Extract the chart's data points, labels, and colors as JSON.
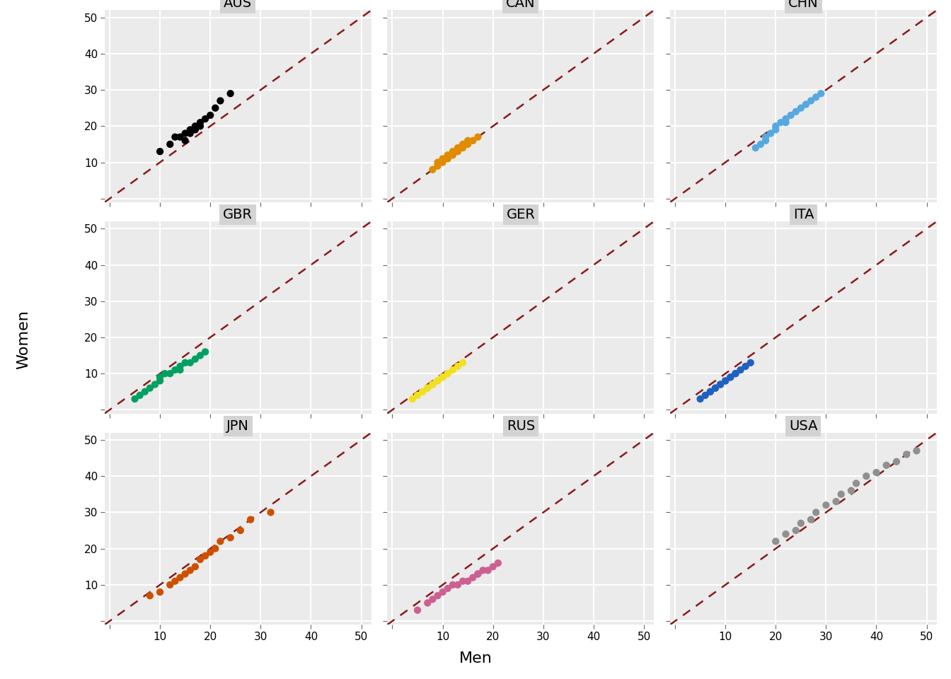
{
  "countries": [
    "AUS",
    "CAN",
    "CHN",
    "GBR",
    "GER",
    "ITA",
    "JPN",
    "RUS",
    "USA"
  ],
  "colors": {
    "AUS": "#000000",
    "CAN": "#E08B00",
    "CHN": "#56A8E0",
    "GBR": "#00A060",
    "GER": "#F0E020",
    "ITA": "#2060C0",
    "JPN": "#CC5000",
    "RUS": "#CC6090",
    "USA": "#909090"
  },
  "data": {
    "AUS": {
      "men": [
        10,
        12,
        13,
        14,
        15,
        15,
        16,
        16,
        17,
        17,
        18,
        18,
        19,
        20,
        21,
        22,
        24
      ],
      "women": [
        13,
        15,
        17,
        17,
        16,
        18,
        18,
        19,
        19,
        20,
        20,
        21,
        22,
        23,
        25,
        27,
        29
      ]
    },
    "CAN": {
      "men": [
        8,
        9,
        9,
        10,
        10,
        11,
        11,
        12,
        12,
        13,
        13,
        14,
        14,
        15,
        15,
        16,
        17
      ],
      "women": [
        8,
        9,
        10,
        10,
        11,
        11,
        12,
        12,
        13,
        13,
        14,
        14,
        15,
        15,
        16,
        16,
        17
      ]
    },
    "CHN": {
      "men": [
        16,
        17,
        18,
        18,
        19,
        20,
        20,
        21,
        22,
        22,
        23,
        24,
        25,
        26,
        27,
        28,
        29
      ],
      "women": [
        14,
        15,
        16,
        17,
        18,
        19,
        20,
        21,
        21,
        22,
        23,
        24,
        25,
        26,
        27,
        28,
        29
      ]
    },
    "GBR": {
      "men": [
        5,
        6,
        7,
        8,
        9,
        10,
        10,
        11,
        12,
        13,
        14,
        14,
        15,
        16,
        17,
        18,
        19
      ],
      "women": [
        3,
        4,
        5,
        6,
        7,
        8,
        9,
        10,
        10,
        11,
        11,
        12,
        13,
        13,
        14,
        15,
        16
      ]
    },
    "GER": {
      "men": [
        4,
        5,
        6,
        6,
        7,
        7,
        8,
        8,
        9,
        9,
        10,
        10,
        11,
        11,
        12,
        13,
        14
      ],
      "women": [
        3,
        4,
        5,
        5,
        6,
        6,
        7,
        7,
        8,
        8,
        9,
        9,
        10,
        10,
        11,
        12,
        13
      ]
    },
    "ITA": {
      "men": [
        5,
        6,
        7,
        7,
        8,
        8,
        9,
        9,
        10,
        10,
        11,
        11,
        12,
        12,
        13,
        14,
        15
      ],
      "women": [
        3,
        4,
        5,
        5,
        6,
        6,
        7,
        7,
        8,
        8,
        9,
        9,
        10,
        10,
        11,
        12,
        13
      ]
    },
    "JPN": {
      "men": [
        8,
        10,
        12,
        13,
        14,
        15,
        16,
        17,
        18,
        19,
        20,
        21,
        22,
        24,
        26,
        28,
        32
      ],
      "women": [
        7,
        8,
        10,
        11,
        12,
        13,
        14,
        15,
        17,
        18,
        19,
        20,
        22,
        23,
        25,
        28,
        30
      ]
    },
    "RUS": {
      "men": [
        5,
        7,
        8,
        9,
        10,
        11,
        12,
        13,
        14,
        15,
        16,
        17,
        17,
        18,
        19,
        20,
        21
      ],
      "women": [
        3,
        5,
        6,
        7,
        8,
        9,
        10,
        10,
        11,
        11,
        12,
        13,
        13,
        14,
        14,
        15,
        16
      ]
    },
    "USA": {
      "men": [
        20,
        22,
        24,
        25,
        27,
        28,
        30,
        32,
        33,
        35,
        36,
        38,
        40,
        42,
        44,
        46,
        48
      ],
      "women": [
        22,
        24,
        25,
        27,
        28,
        30,
        32,
        33,
        35,
        36,
        38,
        40,
        41,
        43,
        44,
        46,
        47
      ]
    }
  },
  "xlim": [
    -1,
    52
  ],
  "ylim": [
    -1,
    52
  ],
  "xticks": [
    0,
    10,
    20,
    30,
    40,
    50
  ],
  "yticks": [
    0,
    10,
    20,
    30,
    40,
    50
  ],
  "xlabel": "Men",
  "ylabel": "Women",
  "panel_bg": "#EBEBEB",
  "fig_bg": "#FFFFFF",
  "grid_color": "#FFFFFF",
  "dashed_line_color": "#8B1A1A",
  "strip_bg": "#D3D3D3",
  "marker_size": 55,
  "tick_fontsize": 11,
  "label_fontsize": 16,
  "strip_fontsize": 14
}
